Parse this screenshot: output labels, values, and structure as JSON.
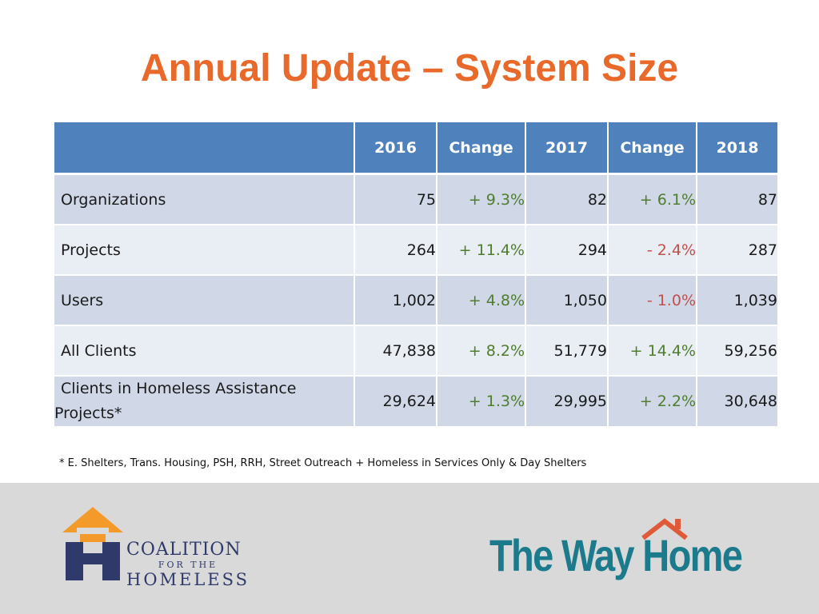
{
  "title": "Annual Update – System Size",
  "table": {
    "headers": [
      "",
      "2016",
      "Change",
      "2017",
      "Change",
      "2018"
    ],
    "rows": [
      {
        "label": "Organizations",
        "v2016": "75",
        "c1": "+ 9.3%",
        "v2017": "82",
        "c2": "+ 6.1%",
        "v2018": "87"
      },
      {
        "label": "Projects",
        "v2016": "264",
        "c1": "+ 11.4%",
        "v2017": "294",
        "c2": "- 2.4%",
        "v2018": "287"
      },
      {
        "label": "Users",
        "v2016": "1,002",
        "c1": "+ 4.8%",
        "v2017": "1,050",
        "c2": "- 1.0%",
        "v2018": "1,039"
      },
      {
        "label": "All Clients",
        "v2016": "47,838",
        "c1": "+ 8.2%",
        "v2017": "51,779",
        "c2": "+ 14.4%",
        "v2018": "59,256"
      },
      {
        "label_line1": "Clients in Homeless Assistance",
        "label_line2": "Projects*",
        "v2016": "29,624",
        "c1": "+ 1.3%",
        "v2017": "29,995",
        "c2": "+ 2.2%",
        "v2018": "30,648"
      }
    ]
  },
  "footnote": "* E. Shelters, Trans. Housing, PSH, RRH, Street Outreach + Homeless in Services Only & Day Shelters",
  "logos": {
    "coalition": {
      "line1": "COALITION",
      "line2": "FOR THE",
      "line3": "HOMELESS"
    },
    "wayhome": "The Way Home"
  },
  "colors": {
    "title": "#e8692a",
    "header_bg": "#4f81bd",
    "row_odd": "#d0d8e8",
    "row_even": "#e9edf4",
    "positive": "#4e7d2c",
    "negative": "#c0504d",
    "footer_bg": "#d9d9d9",
    "wayhome": "#1b7a8c",
    "coalition_navy": "#2f3a6b"
  }
}
